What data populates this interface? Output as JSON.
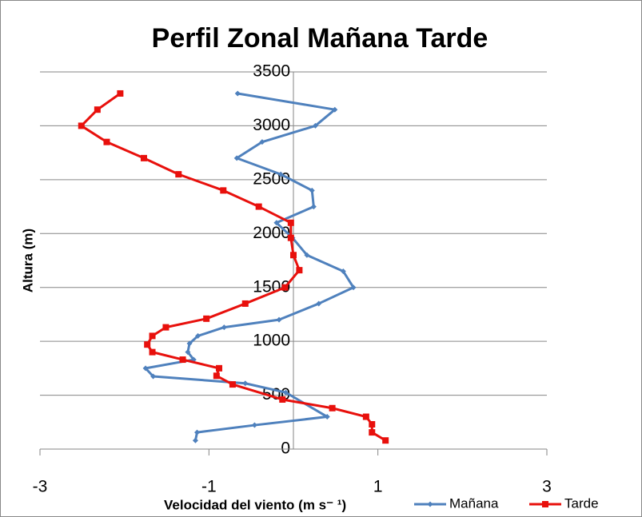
{
  "chart_data": {
    "type": "line",
    "title": "Perfil Zonal Mañana Tarde",
    "xlabel": "Velocidad del viento (m s⁻ ¹)",
    "ylabel": "Altura (m)",
    "xlim": [
      -3,
      3
    ],
    "xticks": [
      -3,
      -1,
      1,
      3
    ],
    "ylim": [
      0,
      3500
    ],
    "yticks": [
      0,
      500,
      1000,
      1500,
      2000,
      2500,
      3000,
      3500
    ],
    "grid": true,
    "legend": "bottom-right",
    "series": [
      {
        "name": "Mañana",
        "color": "#4f81bd",
        "x": [
          -0.66,
          0.49,
          0.26,
          -0.37,
          -0.67,
          -0.15,
          0.22,
          0.24,
          -0.2,
          -0.01,
          0.16,
          0.59,
          0.71,
          0.3,
          -0.17,
          -0.82,
          -1.13,
          -1.23,
          -1.25,
          -1.18,
          -1.75,
          -1.66,
          -0.57,
          -0.09,
          0.4,
          -0.46,
          -1.14,
          -1.16
        ],
        "values": [
          3300,
          3150,
          3000,
          2850,
          2700,
          2550,
          2400,
          2250,
          2100,
          1960,
          1800,
          1650,
          1500,
          1350,
          1200,
          1130,
          1050,
          980,
          900,
          830,
          750,
          675,
          610,
          525,
          300,
          222,
          155,
          80
        ]
      },
      {
        "name": "Tarde",
        "color": "#e8100c",
        "x": [
          -2.05,
          -2.32,
          -2.51,
          -2.21,
          -1.77,
          -1.36,
          -0.83,
          -0.41,
          -0.03,
          -0.03,
          0,
          0.07,
          -0.1,
          -0.57,
          -1.03,
          -1.51,
          -1.67,
          -1.73,
          -1.67,
          -1.31,
          -0.88,
          -0.91,
          -0.72,
          -0.13,
          0.46,
          0.86,
          0.93,
          0.93,
          1.09
        ],
        "values": [
          3300,
          3150,
          3000,
          2850,
          2700,
          2550,
          2400,
          2250,
          2100,
          1960,
          1800,
          1660,
          1500,
          1350,
          1210,
          1130,
          1050,
          970,
          900,
          830,
          750,
          680,
          600,
          460,
          380,
          300,
          230,
          155,
          80
        ]
      }
    ]
  }
}
